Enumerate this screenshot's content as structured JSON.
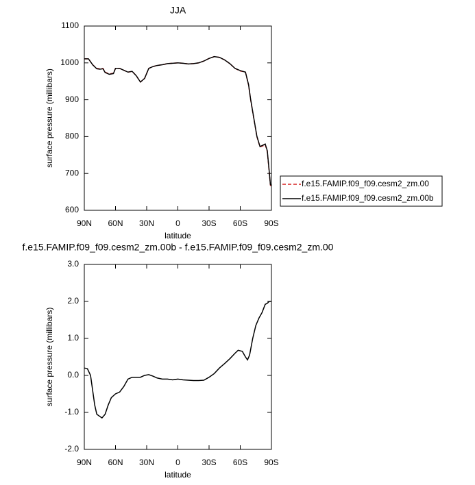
{
  "chart_data": [
    {
      "type": "line",
      "title": "JJA",
      "xlabel": "latitude",
      "ylabel": "surface pressure (millibars)",
      "x": [
        90,
        86,
        82,
        78,
        75,
        72,
        70,
        66,
        62,
        60,
        56,
        52,
        48,
        44,
        40,
        36,
        32,
        28,
        24,
        20,
        15,
        10,
        5,
        0,
        -5,
        -10,
        -15,
        -20,
        -25,
        -30,
        -35,
        -40,
        -45,
        -50,
        -55,
        -60,
        -65,
        -68,
        -70,
        -73,
        -76,
        -79,
        -82,
        -84,
        -86,
        -88,
        -89,
        -90
      ],
      "series": [
        {
          "name": "f.e15.FAMIP.f09_f09.cesm2_zm.00",
          "color": "#d62020",
          "dash": true,
          "values": [
            1011,
            1011,
            995,
            985,
            984,
            985,
            975,
            970,
            972,
            985,
            985,
            980,
            975,
            977,
            965,
            948,
            958,
            985,
            990,
            993,
            995,
            998,
            999,
            1000,
            999,
            997,
            998,
            1000,
            1005,
            1012,
            1017,
            1015,
            1008,
            998,
            985,
            978,
            975,
            940,
            900,
            850,
            800,
            772,
            775,
            778,
            760,
            700,
            668,
            665
          ]
        },
        {
          "name": "f.e15.FAMIP.f09_f09.cesm2_zm.00b",
          "color": "#000000",
          "dash": false,
          "values": [
            1011,
            1011,
            995,
            984,
            983,
            984,
            974,
            969,
            971,
            985,
            985,
            980,
            975,
            977,
            965,
            948,
            958,
            985,
            990,
            993,
            995,
            998,
            999,
            1000,
            999,
            997,
            998,
            1000,
            1005,
            1012,
            1017,
            1015,
            1008,
            998,
            985,
            979,
            975,
            941,
            901,
            851,
            801,
            773,
            777,
            780,
            762,
            702,
            670,
            667
          ]
        }
      ],
      "xlim": [
        90,
        -90
      ],
      "xticks": [
        {
          "value": 90,
          "label": "90N"
        },
        {
          "value": 60,
          "label": "60N"
        },
        {
          "value": 30,
          "label": "30N"
        },
        0,
        {
          "value": -30,
          "label": "30S"
        },
        {
          "value": -60,
          "label": "60S"
        },
        {
          "value": -90,
          "label": "90S"
        }
      ],
      "ylim": [
        600,
        1100
      ],
      "yticks": [
        600,
        700,
        800,
        900,
        1000,
        1100
      ],
      "legend": "right"
    },
    {
      "type": "line",
      "title": "f.e15.FAMIP.f09_f09.cesm2_zm.00b - f.e15.FAMIP.f09_f09.cesm2_zm.00",
      "xlabel": "latitude",
      "ylabel": "surface pressure (millibars)",
      "x": [
        90,
        87,
        84,
        82,
        80,
        78,
        73,
        70,
        67,
        64,
        60,
        56,
        52,
        48,
        44,
        40,
        36,
        32,
        28,
        24,
        20,
        15,
        10,
        5,
        0,
        -5,
        -10,
        -15,
        -20,
        -25,
        -30,
        -35,
        -40,
        -45,
        -50,
        -55,
        -58,
        -62,
        -65,
        -67,
        -69,
        -72,
        -75,
        -78,
        -81,
        -84,
        -86,
        -88,
        -90
      ],
      "values": [
        0.2,
        0.18,
        0.0,
        -0.4,
        -0.8,
        -1.05,
        -1.15,
        -1.05,
        -0.8,
        -0.6,
        -0.5,
        -0.45,
        -0.3,
        -0.1,
        -0.05,
        -0.05,
        -0.05,
        0.0,
        0.02,
        -0.02,
        -0.07,
        -0.1,
        -0.1,
        -0.12,
        -0.1,
        -0.12,
        -0.13,
        -0.14,
        -0.14,
        -0.13,
        -0.05,
        0.05,
        0.2,
        0.32,
        0.45,
        0.6,
        0.68,
        0.65,
        0.5,
        0.42,
        0.55,
        1.0,
        1.35,
        1.55,
        1.7,
        1.92,
        1.95,
        2.0,
        2.0
      ],
      "color": "#000000",
      "xlim": [
        90,
        -90
      ],
      "xticks": [
        {
          "value": 90,
          "label": "90N"
        },
        {
          "value": 60,
          "label": "60N"
        },
        {
          "value": 30,
          "label": "30N"
        },
        0,
        {
          "value": -30,
          "label": "30S"
        },
        {
          "value": -60,
          "label": "60S"
        },
        {
          "value": -90,
          "label": "90S"
        }
      ],
      "ylim": [
        -2,
        3
      ],
      "yticks": [
        {
          "value": -2,
          "label": "-2.0"
        },
        {
          "value": -1,
          "label": "-1.0"
        },
        {
          "value": 0,
          "label": "0.0"
        },
        {
          "value": 1,
          "label": "1.0"
        },
        {
          "value": 2,
          "label": "2.0"
        },
        {
          "value": 3,
          "label": "3.0"
        }
      ]
    }
  ]
}
